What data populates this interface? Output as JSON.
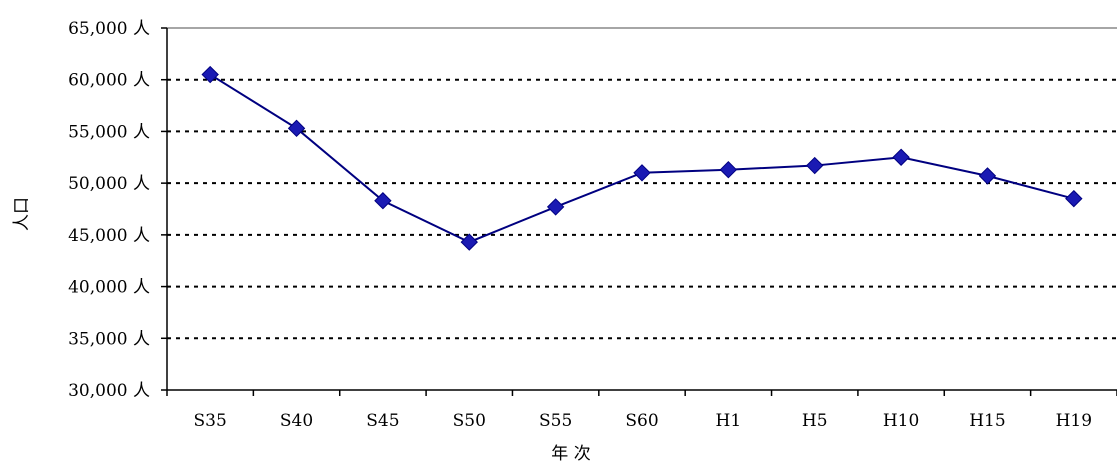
{
  "chart_data": {
    "type": "line",
    "title": "",
    "xlabel": "年 次",
    "ylabel": "人口",
    "categories": [
      "S35",
      "S40",
      "S45",
      "S50",
      "S55",
      "S60",
      "H1",
      "H5",
      "H10",
      "H15",
      "H19"
    ],
    "series": [
      {
        "values": [
          60500,
          55300,
          48300,
          44300,
          47700,
          51000,
          51300,
          51700,
          52500,
          50700,
          48500
        ]
      }
    ],
    "ylim": [
      30000,
      65000
    ],
    "y_ticks": [
      "30,000 人",
      "35,000 人",
      "40,000 人",
      "45,000 人",
      "50,000 人",
      "55,000 人",
      "60,000 人",
      "65,000 人"
    ],
    "y_tick_values": [
      30000,
      35000,
      40000,
      45000,
      50000,
      55000,
      60000,
      65000
    ],
    "grid": "horizontal dotted",
    "legend": "none",
    "colors": {
      "line": "#000080",
      "marker": "#1a1ab3",
      "marker_stroke": "#000080",
      "grid": "#000000",
      "axis": "#000000"
    }
  }
}
